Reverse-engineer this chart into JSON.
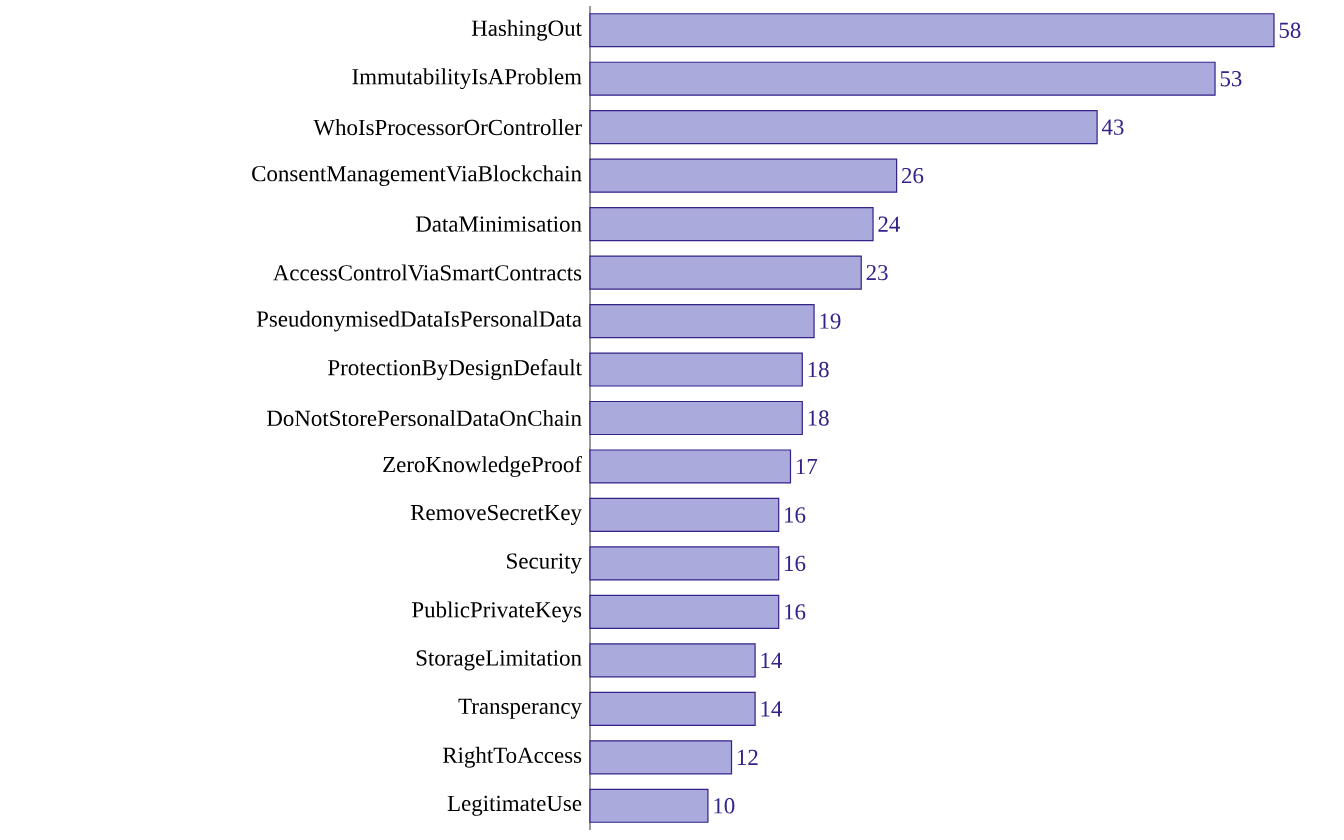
{
  "chart_data": {
    "type": "bar",
    "orientation": "horizontal",
    "data_labels": true,
    "color": "#aaaadc",
    "categories": [
      "HashingOut",
      "ImmutabilityIsAProblem",
      "WhoIsProcessorOrController",
      "ConsentManagementViaBlockchain",
      "DataMinimisation",
      "AccessControlViaSmartContracts",
      "PseudonymisedDataIsPersonalData",
      "ProtectionByDesignDefault",
      "DoNotStorePersonalDataOnChain",
      "ZeroKnowledgeProof",
      "RemoveSecretKey",
      "Security",
      "PublicPrivateKeys",
      "StorageLimitation",
      "Transperancy",
      "RightToAccess",
      "LegitimateUse"
    ],
    "values": [
      58,
      53,
      43,
      26,
      24,
      23,
      19,
      18,
      18,
      17,
      16,
      16,
      16,
      14,
      14,
      12,
      10
    ]
  }
}
